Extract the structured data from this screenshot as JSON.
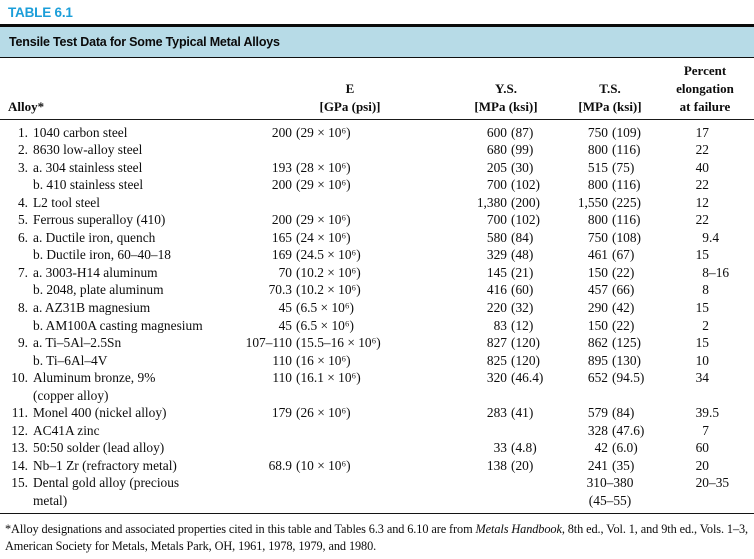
{
  "table_label": "TABLE 6.1",
  "banner_title": "Tensile Test Data for Some Typical Metal Alloys",
  "colors": {
    "label_cyan": "#1b9ed9",
    "banner_blue": "#b7dbe7",
    "rule_black": "#0a0a0a",
    "text": "#0d0d0d"
  },
  "headers": {
    "alloy": "Alloy*",
    "e_line1": "E",
    "e_line2": "[GPa (psi)]",
    "ys_line1": "Y.S.",
    "ys_line2": "[MPa (ksi)]",
    "ts_line1": "T.S.",
    "ts_line2": "[MPa (ksi)]",
    "el_line1": "Percent",
    "el_line2": "elongation",
    "el_line3": "at failure"
  },
  "rows": [
    {
      "num": "1.",
      "label": "1040 carbon steel",
      "e_num": "200",
      "e_paren": "(29 × 10⁶)",
      "ys_num": "600",
      "ys_paren": "(87)",
      "ts_num": "750",
      "ts_paren": "(109)",
      "el_num": "17"
    },
    {
      "num": "2.",
      "label": "8630 low-alloy steel",
      "ys_num": "680",
      "ys_paren": "(99)",
      "ts_num": "800",
      "ts_paren": "(116)",
      "el_num": "22"
    },
    {
      "num": "3.",
      "label": "a. 304 stainless steel",
      "e_num": "193",
      "e_paren": "(28 × 10⁶)",
      "ys_num": "205",
      "ys_paren": "(30)",
      "ts_num": "515",
      "ts_paren": "(75)",
      "el_num": "40"
    },
    {
      "num": "",
      "label": "b. 410 stainless steel",
      "e_num": "200",
      "e_paren": "(29 × 10⁶)",
      "ys_num": "700",
      "ys_paren": "(102)",
      "ts_num": "800",
      "ts_paren": "(116)",
      "el_num": "22"
    },
    {
      "num": "4.",
      "label": "L2 tool steel",
      "ys_num": "1,380",
      "ys_paren": "(200)",
      "ts_num": "1,550",
      "ts_paren": "(225)",
      "el_num": "12"
    },
    {
      "num": "5.",
      "label": "Ferrous superalloy (410)",
      "e_num": "200",
      "e_paren": "(29 × 10⁶)",
      "ys_num": "700",
      "ys_paren": "(102)",
      "ts_num": "800",
      "ts_paren": "(116)",
      "el_num": "22"
    },
    {
      "num": "6.",
      "label": "a. Ductile iron, quench",
      "e_num": "165",
      "e_paren": "(24 × 10⁶)",
      "ys_num": "580",
      "ys_paren": "(84)",
      "ts_num": "750",
      "ts_paren": "(108)",
      "el_num": "9",
      "el_suf": ".4"
    },
    {
      "num": "",
      "label": "b. Ductile iron, 60–40–18",
      "e_num": "169",
      "e_paren": "(24.5 × 10⁶)",
      "ys_num": "329",
      "ys_paren": "(48)",
      "ts_num": "461",
      "ts_paren": "(67)",
      "el_num": "15"
    },
    {
      "num": "7.",
      "label": "a. 3003-H14 aluminum",
      "e_num": "70",
      "e_paren": "(10.2 × 10⁶)",
      "ys_num": "145",
      "ys_paren": "(21)",
      "ts_num": "150",
      "ts_paren": "(22)",
      "el_num": "8",
      "el_suf": "–16"
    },
    {
      "num": "",
      "label": "b. 2048, plate aluminum",
      "e_num": "70.3",
      "e_paren": "(10.2 × 10⁶)",
      "ys_num": "416",
      "ys_paren": "(60)",
      "ts_num": "457",
      "ts_paren": "(66)",
      "el_num": "8"
    },
    {
      "num": "8.",
      "label": "a. AZ31B magnesium",
      "e_num": "45",
      "e_paren": "(6.5 × 10⁶)",
      "ys_num": "220",
      "ys_paren": "(32)",
      "ts_num": "290",
      "ts_paren": "(42)",
      "el_num": "15"
    },
    {
      "num": "",
      "label": "b. AM100A casting magnesium",
      "e_num": "45",
      "e_paren": "(6.5 × 10⁶)",
      "ys_num": "83",
      "ys_paren": "(12)",
      "ts_num": "150",
      "ts_paren": "(22)",
      "el_num": "2"
    },
    {
      "num": "9.",
      "label": "a. Ti–5Al–2.5Sn",
      "e_num": "107–110",
      "e_paren": "(15.5–16 × 10⁶)",
      "ys_num": "827",
      "ys_paren": "(120)",
      "ts_num": "862",
      "ts_paren": "(125)",
      "el_num": "15"
    },
    {
      "num": "",
      "label": "b. Ti–6Al–4V",
      "e_num": "110",
      "e_paren": "(16 × 10⁶)",
      "ys_num": "825",
      "ys_paren": "(120)",
      "ts_num": "895",
      "ts_paren": "(130)",
      "el_num": "10"
    },
    {
      "num": "10.",
      "label": "Aluminum bronze, 9%",
      "e_num": "110",
      "e_paren": "(16.1 × 10⁶)",
      "ys_num": "320",
      "ys_paren": "(46.4)",
      "ts_num": "652",
      "ts_paren": "(94.5)",
      "el_num": "34"
    },
    {
      "num": "",
      "label": "(copper alloy)"
    },
    {
      "num": "11.",
      "label": "Monel 400 (nickel alloy)",
      "e_num": "179",
      "e_paren": "(26 × 10⁶)",
      "ys_num": "283",
      "ys_paren": "(41)",
      "ts_num": "579",
      "ts_paren": "(84)",
      "el_num": "39",
      "el_suf": ".5"
    },
    {
      "num": "12.",
      "label": "AC41A zinc",
      "ts_num": "328",
      "ts_paren": "(47.6)",
      "el_num": "7"
    },
    {
      "num": "13.",
      "label": "50:50 solder (lead alloy)",
      "ys_num": "33",
      "ys_paren": "(4.8)",
      "ts_num": "42",
      "ts_paren": "(6.0)",
      "el_num": "60"
    },
    {
      "num": "14.",
      "label": "Nb–1 Zr (refractory metal)",
      "e_num": "68.9",
      "e_paren": "(10 × 10⁶)",
      "ys_num": "138",
      "ys_paren": "(20)",
      "ts_num": "241",
      "ts_paren": "(35)",
      "el_num": "20"
    },
    {
      "num": "15.",
      "label": "Dental gold alloy (precious",
      "ts_center": "310–380",
      "el_num": "20",
      "el_suf": "–35"
    },
    {
      "num": "",
      "label": "metal)",
      "ts_center": "(45–55)"
    }
  ],
  "footnote": {
    "line1_pre": "*Alloy designations and associated properties cited in this table and Tables 6.3 and 6.10 are from ",
    "line1_italic": "Metals Handbook",
    "line1_post": ", 8th ed., Vol. 1, and",
    "line2": "9th ed., Vols. 1–3, American Society for Metals, Metals Park, OH, 1961, 1978, 1979, and 1980."
  }
}
